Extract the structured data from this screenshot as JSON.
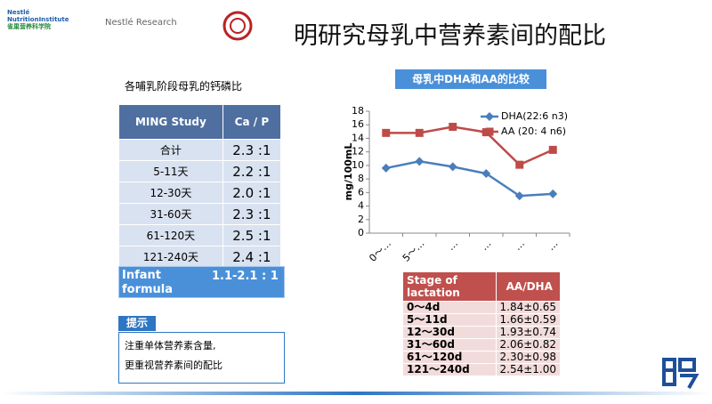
{
  "header": {
    "logo_1_line_1": "Nestlé",
    "logo_1_line_2": "NutritionInstitute",
    "logo_1_line_3": "雀巢营养科学院",
    "logo_2": "Nestlé Research",
    "title": "明研究母乳中营养素间的配比"
  },
  "left_table": {
    "caption": "各哺乳阶段母乳的钙磷比",
    "header": [
      "MING Study",
      "Ca / P"
    ],
    "rows": [
      [
        "合计",
        "2.3 :1"
      ],
      [
        "5-11天",
        "2.2 :1"
      ],
      [
        "12-30天",
        "2.0 :1"
      ],
      [
        "31-60天",
        "2.3 :1"
      ],
      [
        "61-120天",
        "2.5 :1"
      ],
      [
        "121-240天",
        "2.4 :1"
      ]
    ]
  },
  "formula": {
    "label": "Infant formula",
    "value": "1.1-2.1 : 1"
  },
  "tip": {
    "label": "提示",
    "lines": [
      "注重单体营养素含量,",
      "更重视营养素间的配比"
    ]
  },
  "chart_data": {
    "type": "line",
    "title": "母乳中DHA和AA的比较",
    "y_label": "mg/100mL",
    "categories": [
      "0～…",
      "5～…",
      "…",
      "…",
      "…",
      "…"
    ],
    "series": [
      {
        "name": "DHA(22:6 n3)",
        "color": "#4a7ebb",
        "values": [
          9.6,
          10.6,
          9.8,
          8.8,
          5.5,
          5.8
        ]
      },
      {
        "name": "AA (20: 4 n6)",
        "color": "#be4b48",
        "values": [
          14.8,
          14.8,
          15.7,
          14.9,
          10.1,
          12.3
        ]
      }
    ],
    "ylim": [
      0,
      18
    ],
    "yticks": [
      0,
      2,
      4,
      6,
      8,
      10,
      12,
      14,
      16,
      18
    ],
    "grid": false
  },
  "right_table": {
    "header": [
      "Stage of lactation",
      "AA/DHA"
    ],
    "rows": [
      [
        "0～4d",
        "1.84±0.65"
      ],
      [
        "5～11d",
        "1.66±0.59"
      ],
      [
        "12～30d",
        "1.93±0.74"
      ],
      [
        "31～60d",
        "2.06±0.82"
      ],
      [
        "61～120d",
        "2.30±0.98"
      ],
      [
        "121～240d",
        "2.54±1.00"
      ]
    ]
  }
}
